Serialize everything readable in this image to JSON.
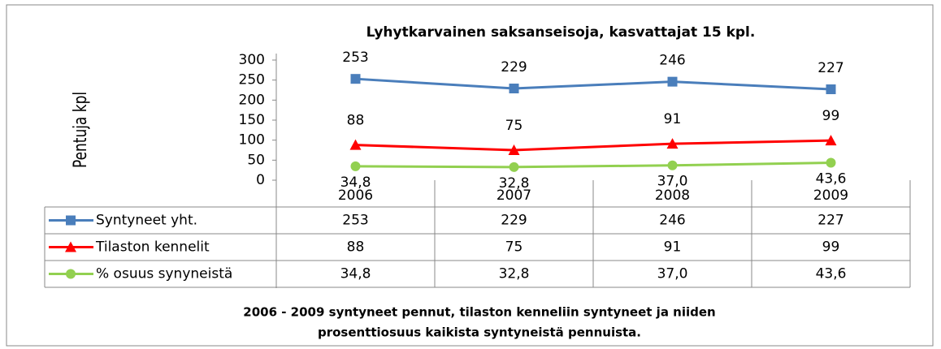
{
  "chart_data": {
    "type": "line",
    "title": "Lyhytkarvainen saksanseisoja, kasvattajat 15 kpl.",
    "ylabel": "Pentuja kpl",
    "categories": [
      "2006",
      "2007",
      "2008",
      "2009"
    ],
    "series": [
      {
        "name": "Syntyneet yht.",
        "color": "#4a7ebb",
        "marker": "square",
        "values": [
          253,
          229,
          246,
          227
        ]
      },
      {
        "name": "Tilaston kennelit",
        "color": "#ff0000",
        "marker": "triangle",
        "values": [
          88,
          75,
          91,
          99
        ]
      },
      {
        "name": "% osuus synyneistä",
        "color": "#92d050",
        "marker": "circle",
        "values": [
          34.8,
          32.8,
          37.0,
          43.6
        ],
        "value_labels": [
          "34,8",
          "32,8",
          "37,0",
          "43,6"
        ]
      }
    ],
    "ylim": [
      0,
      300
    ],
    "yticks": [
      0,
      50,
      100,
      150,
      200,
      250,
      300
    ],
    "caption": [
      "2006 - 2009 syntyneet  pennut, tilaston kenneliin syntyneet ja niiden",
      "prosenttiosuus kaikista syntyneistä pennuista."
    ]
  }
}
